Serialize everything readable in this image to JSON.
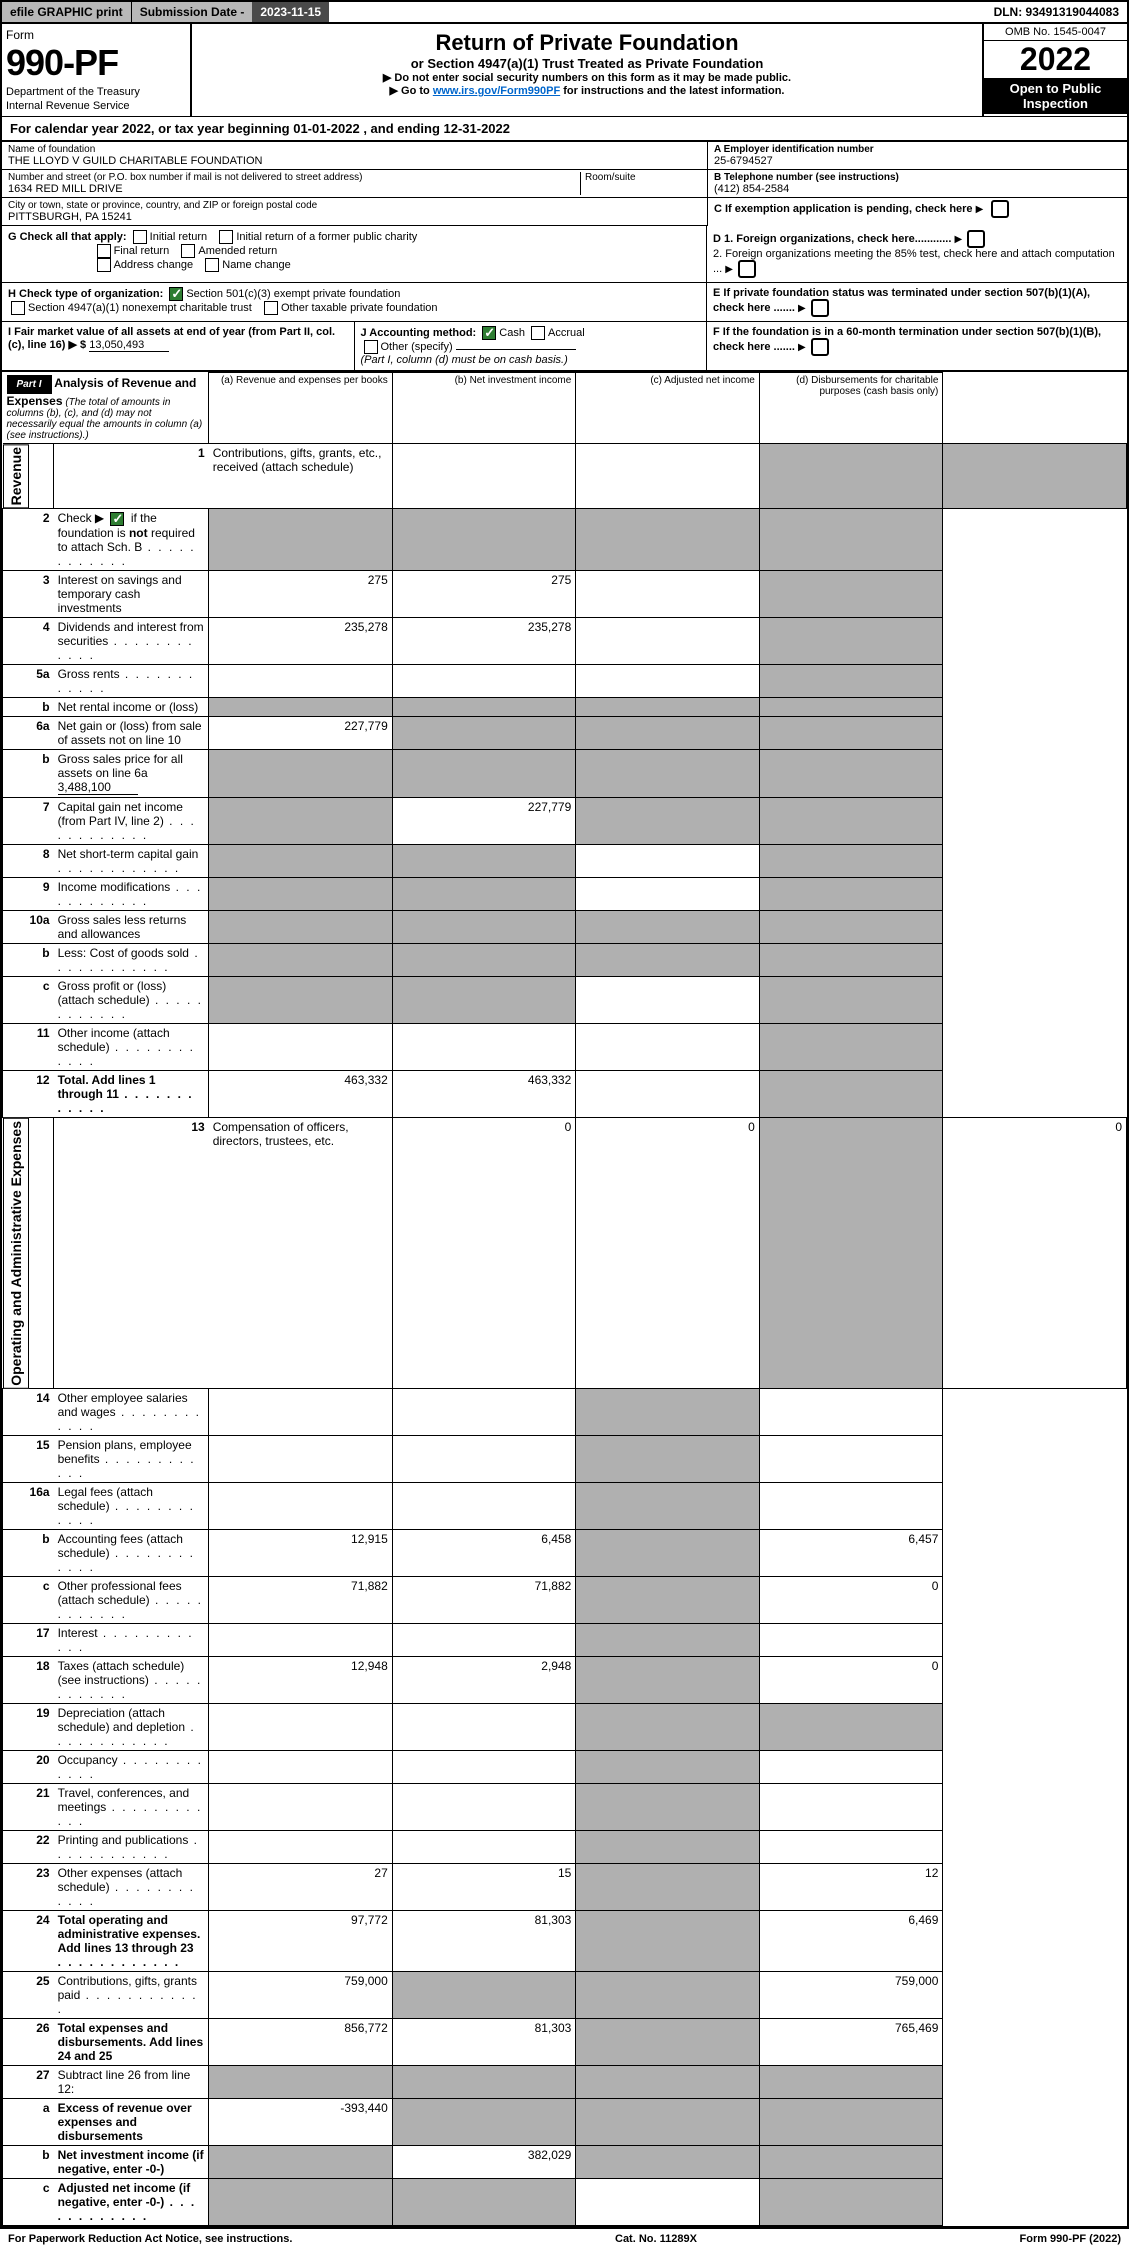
{
  "topbar": {
    "efile": "efile GRAPHIC print",
    "sub_lbl": "Submission Date - ",
    "sub_val": "2023-11-15",
    "dln": "DLN: 93491319044083"
  },
  "header": {
    "form": "Form",
    "num": "990-PF",
    "dept": "Department of the Treasury",
    "irs": "Internal Revenue Service",
    "title": "Return of Private Foundation",
    "sub": "or Section 4947(a)(1) Trust Treated as Private Foundation",
    "note1": "▶ Do not enter social security numbers on this form as it may be made public.",
    "note2_pre": "▶ Go to ",
    "note2_link": "www.irs.gov/Form990PF",
    "note2_post": " for instructions and the latest information.",
    "omb": "OMB No. 1545-0047",
    "year": "2022",
    "open": "Open to Public Inspection"
  },
  "cal_year": "For calendar year 2022, or tax year beginning 01-01-2022                                   , and ending 12-31-2022",
  "entity": {
    "name_lbl": "Name of foundation",
    "name": "THE LLOYD V GUILD CHARITABLE FOUNDATION",
    "addr_lbl": "Number and street (or P.O. box number if mail is not delivered to street address)",
    "room_lbl": "Room/suite",
    "addr": "1634 RED MILL DRIVE",
    "city_lbl": "City or town, state or province, country, and ZIP or foreign postal code",
    "city": "PITTSBURGH, PA  15241",
    "ein_lbl": "A Employer identification number",
    "ein": "25-6794527",
    "tel_lbl": "B Telephone number (see instructions)",
    "tel": "(412) 854-2584",
    "c_lbl": "C If exemption application is pending, check here"
  },
  "checks": {
    "g": "G Check all that apply:",
    "g1": "Initial return",
    "g2": "Initial return of a former public charity",
    "g3": "Final return",
    "g4": "Amended return",
    "g5": "Address change",
    "g6": "Name change",
    "h": "H Check type of organization:",
    "h1": "Section 501(c)(3) exempt private foundation",
    "h2": "Section 4947(a)(1) nonexempt charitable trust",
    "h3": "Other taxable private foundation",
    "i_lbl": "I Fair market value of all assets at end of year (from Part II, col. (c), line 16) ▶ $",
    "i_val": "13,050,493",
    "j": "J Accounting method:",
    "j1": "Cash",
    "j2": "Accrual",
    "j3": "Other (specify)",
    "j_note": "(Part I, column (d) must be on cash basis.)",
    "d1": "D 1. Foreign organizations, check here............",
    "d2": "2. Foreign organizations meeting the 85% test, check here and attach computation ...",
    "e": "E  If private foundation status was terminated under section 507(b)(1)(A), check here .......",
    "f": "F  If the foundation is in a 60-month termination under section 507(b)(1)(B), check here ......."
  },
  "part1": {
    "label": "Part I",
    "title": "Analysis of Revenue and Expenses",
    "title_note": "(The total of amounts in columns (b), (c), and (d) may not necessarily equal the amounts in column (a) (see instructions).)",
    "col_a": "(a)   Revenue and expenses per books",
    "col_b": "(b)   Net investment income",
    "col_c": "(c)   Adjusted net income",
    "col_d": "(d)   Disbursements for charitable purposes (cash basis only)"
  },
  "side": {
    "rev": "Revenue",
    "exp": "Operating and Administrative Expenses"
  },
  "rows": [
    {
      "n": "1",
      "d": "Contributions, gifts, grants, etc., received (attach schedule)",
      "a": "",
      "b": "",
      "c": "shade",
      "dd": "shade"
    },
    {
      "n": "2",
      "d": "Check ▶ ☑ if the foundation is not required to attach Sch. B",
      "a": "shade",
      "b": "shade",
      "c": "shade",
      "dd": "shade",
      "checked": true,
      "dots": true
    },
    {
      "n": "3",
      "d": "Interest on savings and temporary cash investments",
      "a": "275",
      "b": "275",
      "c": "",
      "dd": "shade"
    },
    {
      "n": "4",
      "d": "Dividends and interest from securities",
      "a": "235,278",
      "b": "235,278",
      "c": "",
      "dd": "shade",
      "dots": true
    },
    {
      "n": "5a",
      "d": "Gross rents",
      "a": "",
      "b": "",
      "c": "",
      "dd": "shade",
      "dots": true
    },
    {
      "n": "b",
      "d": "Net rental income or (loss)",
      "a": "shade",
      "b": "shade",
      "c": "shade",
      "dd": "shade",
      "inset": true
    },
    {
      "n": "6a",
      "d": "Net gain or (loss) from sale of assets not on line 10",
      "a": "227,779",
      "b": "shade",
      "c": "shade",
      "dd": "shade"
    },
    {
      "n": "b",
      "d": "Gross sales price for all assets on line 6a",
      "a": "shade",
      "b": "shade",
      "c": "shade",
      "dd": "shade",
      "inset": true,
      "val": "3,488,100"
    },
    {
      "n": "7",
      "d": "Capital gain net income (from Part IV, line 2)",
      "a": "shade",
      "b": "227,779",
      "c": "shade",
      "dd": "shade",
      "dots": true
    },
    {
      "n": "8",
      "d": "Net short-term capital gain",
      "a": "shade",
      "b": "shade",
      "c": "",
      "dd": "shade",
      "dots": true
    },
    {
      "n": "9",
      "d": "Income modifications",
      "a": "shade",
      "b": "shade",
      "c": "",
      "dd": "shade",
      "dots": true
    },
    {
      "n": "10a",
      "d": "Gross sales less returns and allowances",
      "a": "shade",
      "b": "shade",
      "c": "shade",
      "dd": "shade",
      "inset": true
    },
    {
      "n": "b",
      "d": "Less: Cost of goods sold",
      "a": "shade",
      "b": "shade",
      "c": "shade",
      "dd": "shade",
      "inset": true,
      "dots": true
    },
    {
      "n": "c",
      "d": "Gross profit or (loss) (attach schedule)",
      "a": "shade",
      "b": "shade",
      "c": "",
      "dd": "shade",
      "dots": true
    },
    {
      "n": "11",
      "d": "Other income (attach schedule)",
      "a": "",
      "b": "",
      "c": "",
      "dd": "shade",
      "dots": true
    },
    {
      "n": "12",
      "d": "Total. Add lines 1 through 11",
      "a": "463,332",
      "b": "463,332",
      "c": "",
      "dd": "shade",
      "bold": true,
      "dots": true
    }
  ],
  "exp_rows": [
    {
      "n": "13",
      "d": "Compensation of officers, directors, trustees, etc.",
      "a": "0",
      "b": "0",
      "c": "shade",
      "dd": "0"
    },
    {
      "n": "14",
      "d": "Other employee salaries and wages",
      "a": "",
      "b": "",
      "c": "shade",
      "dd": "",
      "dots": true
    },
    {
      "n": "15",
      "d": "Pension plans, employee benefits",
      "a": "",
      "b": "",
      "c": "shade",
      "dd": "",
      "dots": true
    },
    {
      "n": "16a",
      "d": "Legal fees (attach schedule)",
      "a": "",
      "b": "",
      "c": "shade",
      "dd": "",
      "dots": true
    },
    {
      "n": "b",
      "d": "Accounting fees (attach schedule)",
      "a": "12,915",
      "b": "6,458",
      "c": "shade",
      "dd": "6,457",
      "dots": true
    },
    {
      "n": "c",
      "d": "Other professional fees (attach schedule)",
      "a": "71,882",
      "b": "71,882",
      "c": "shade",
      "dd": "0",
      "dots": true
    },
    {
      "n": "17",
      "d": "Interest",
      "a": "",
      "b": "",
      "c": "shade",
      "dd": "",
      "dots": true
    },
    {
      "n": "18",
      "d": "Taxes (attach schedule) (see instructions)",
      "a": "12,948",
      "b": "2,948",
      "c": "shade",
      "dd": "0",
      "dots": true
    },
    {
      "n": "19",
      "d": "Depreciation (attach schedule) and depletion",
      "a": "",
      "b": "",
      "c": "shade",
      "dd": "shade",
      "dots": true
    },
    {
      "n": "20",
      "d": "Occupancy",
      "a": "",
      "b": "",
      "c": "shade",
      "dd": "",
      "dots": true
    },
    {
      "n": "21",
      "d": "Travel, conferences, and meetings",
      "a": "",
      "b": "",
      "c": "shade",
      "dd": "",
      "dots": true
    },
    {
      "n": "22",
      "d": "Printing and publications",
      "a": "",
      "b": "",
      "c": "shade",
      "dd": "",
      "dots": true
    },
    {
      "n": "23",
      "d": "Other expenses (attach schedule)",
      "a": "27",
      "b": "15",
      "c": "shade",
      "dd": "12",
      "dots": true
    },
    {
      "n": "24",
      "d": "Total operating and administrative expenses. Add lines 13 through 23",
      "a": "97,772",
      "b": "81,303",
      "c": "shade",
      "dd": "6,469",
      "bold": true,
      "dots": true
    },
    {
      "n": "25",
      "d": "Contributions, gifts, grants paid",
      "a": "759,000",
      "b": "shade",
      "c": "shade",
      "dd": "759,000",
      "dots": true
    },
    {
      "n": "26",
      "d": "Total expenses and disbursements. Add lines 24 and 25",
      "a": "856,772",
      "b": "81,303",
      "c": "shade",
      "dd": "765,469",
      "bold": true
    }
  ],
  "bottom_rows": [
    {
      "n": "27",
      "d": "Subtract line 26 from line 12:",
      "a": "shade",
      "b": "shade",
      "c": "shade",
      "dd": "shade"
    },
    {
      "n": "a",
      "d": "Excess of revenue over expenses and disbursements",
      "a": "-393,440",
      "b": "shade",
      "c": "shade",
      "dd": "shade",
      "bold": true
    },
    {
      "n": "b",
      "d": "Net investment income (if negative, enter -0-)",
      "a": "shade",
      "b": "382,029",
      "c": "shade",
      "dd": "shade",
      "bold": true
    },
    {
      "n": "c",
      "d": "Adjusted net income (if negative, enter -0-)",
      "a": "shade",
      "b": "shade",
      "c": "",
      "dd": "shade",
      "bold": true,
      "dots": true
    }
  ],
  "footer": {
    "left": "For Paperwork Reduction Act Notice, see instructions.",
    "mid": "Cat. No. 11289X",
    "right": "Form 990-PF (2022)"
  }
}
